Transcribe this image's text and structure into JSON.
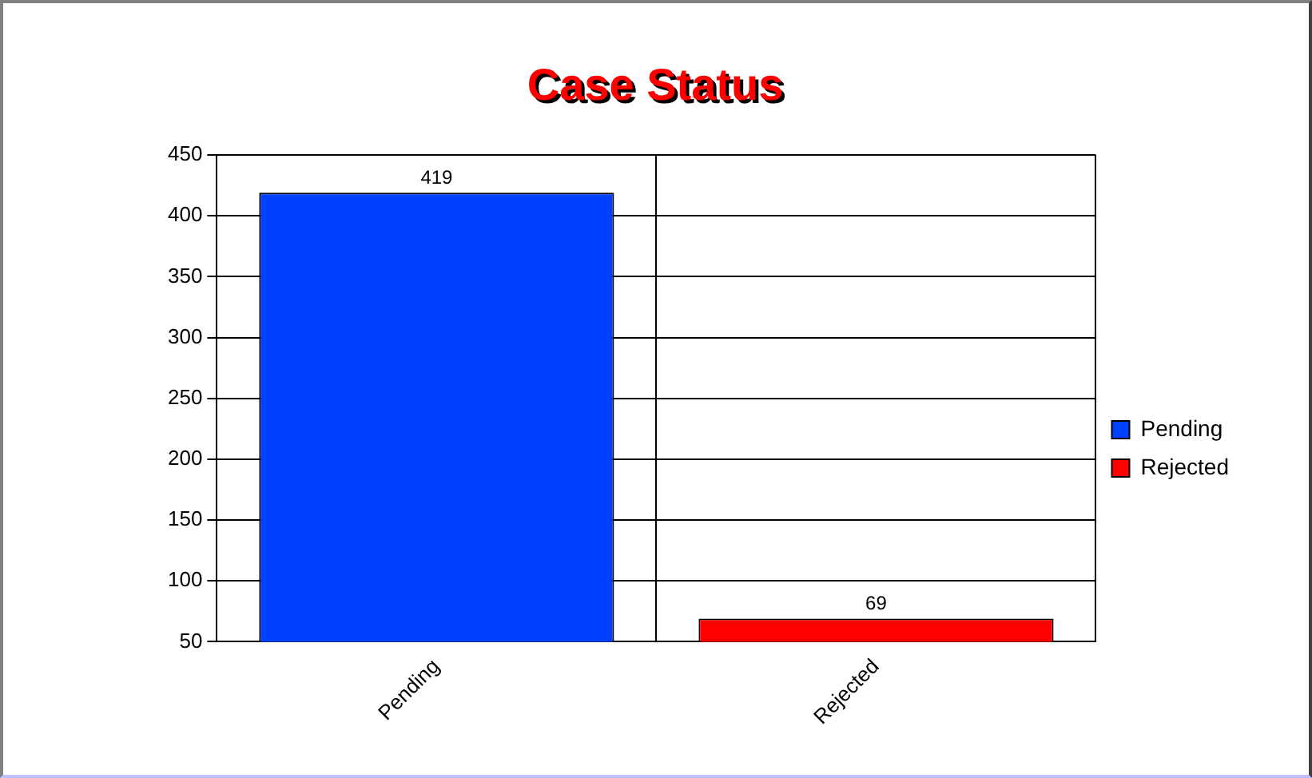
{
  "chart_data": {
    "type": "bar",
    "title": "Case Status",
    "categories": [
      "Pending",
      "Rejected"
    ],
    "series": [
      {
        "name": "Pending",
        "color": "#0040ff",
        "values": [
          419,
          null
        ]
      },
      {
        "name": "Rejected",
        "color": "#ff0000",
        "values": [
          null,
          69
        ]
      }
    ],
    "ylim": [
      50,
      450
    ],
    "yticks": [
      50,
      100,
      150,
      200,
      250,
      300,
      350,
      400,
      450
    ],
    "grid": true,
    "legend": "right",
    "data_labels": true
  }
}
